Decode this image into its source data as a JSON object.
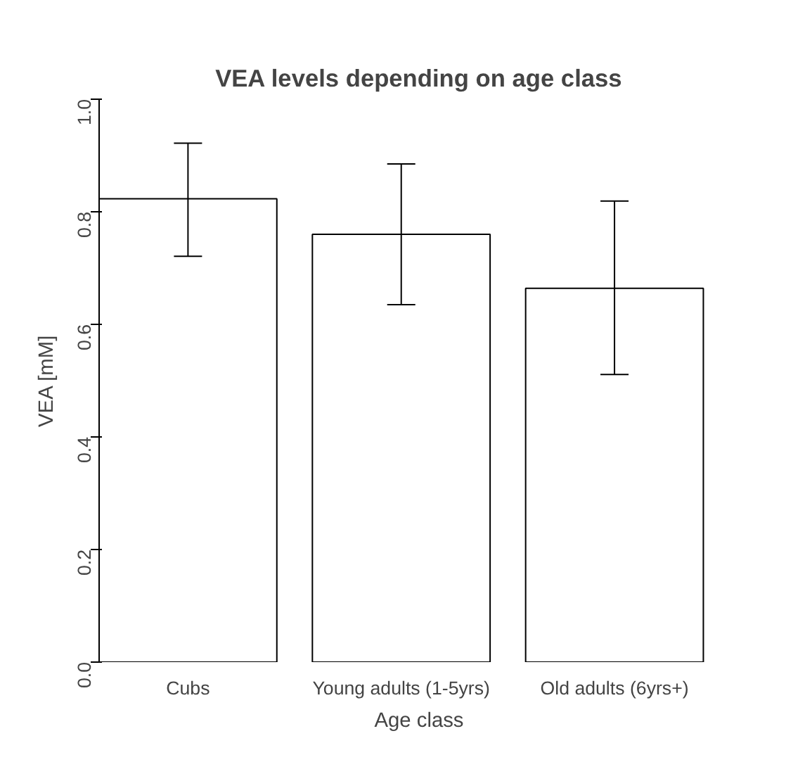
{
  "chart_data": {
    "type": "bar",
    "title": "VEA levels depending on age class",
    "xlabel": "Age class",
    "ylabel": "VEA [mM]",
    "categories": [
      "Cubs",
      "Young adults (1-5yrs)",
      "Old adults (6yrs+)"
    ],
    "values": [
      0.823,
      0.76,
      0.664
    ],
    "errors": [
      [
        0.721,
        0.922
      ],
      [
        0.635,
        0.885
      ],
      [
        0.511,
        0.819
      ]
    ],
    "color": "#ffffff",
    "ylim": [
      0,
      1.0
    ],
    "yticks": [
      {
        "value": 0,
        "label": "0.0"
      },
      {
        "value": 0.2,
        "label": "0.2"
      },
      {
        "value": 0.4,
        "label": "0.4"
      },
      {
        "value": 0.6,
        "label": "0.6"
      },
      {
        "value": 0.8,
        "label": "0.8"
      },
      {
        "value": 1.0,
        "label": "1.0"
      }
    ],
    "grid": false
  }
}
